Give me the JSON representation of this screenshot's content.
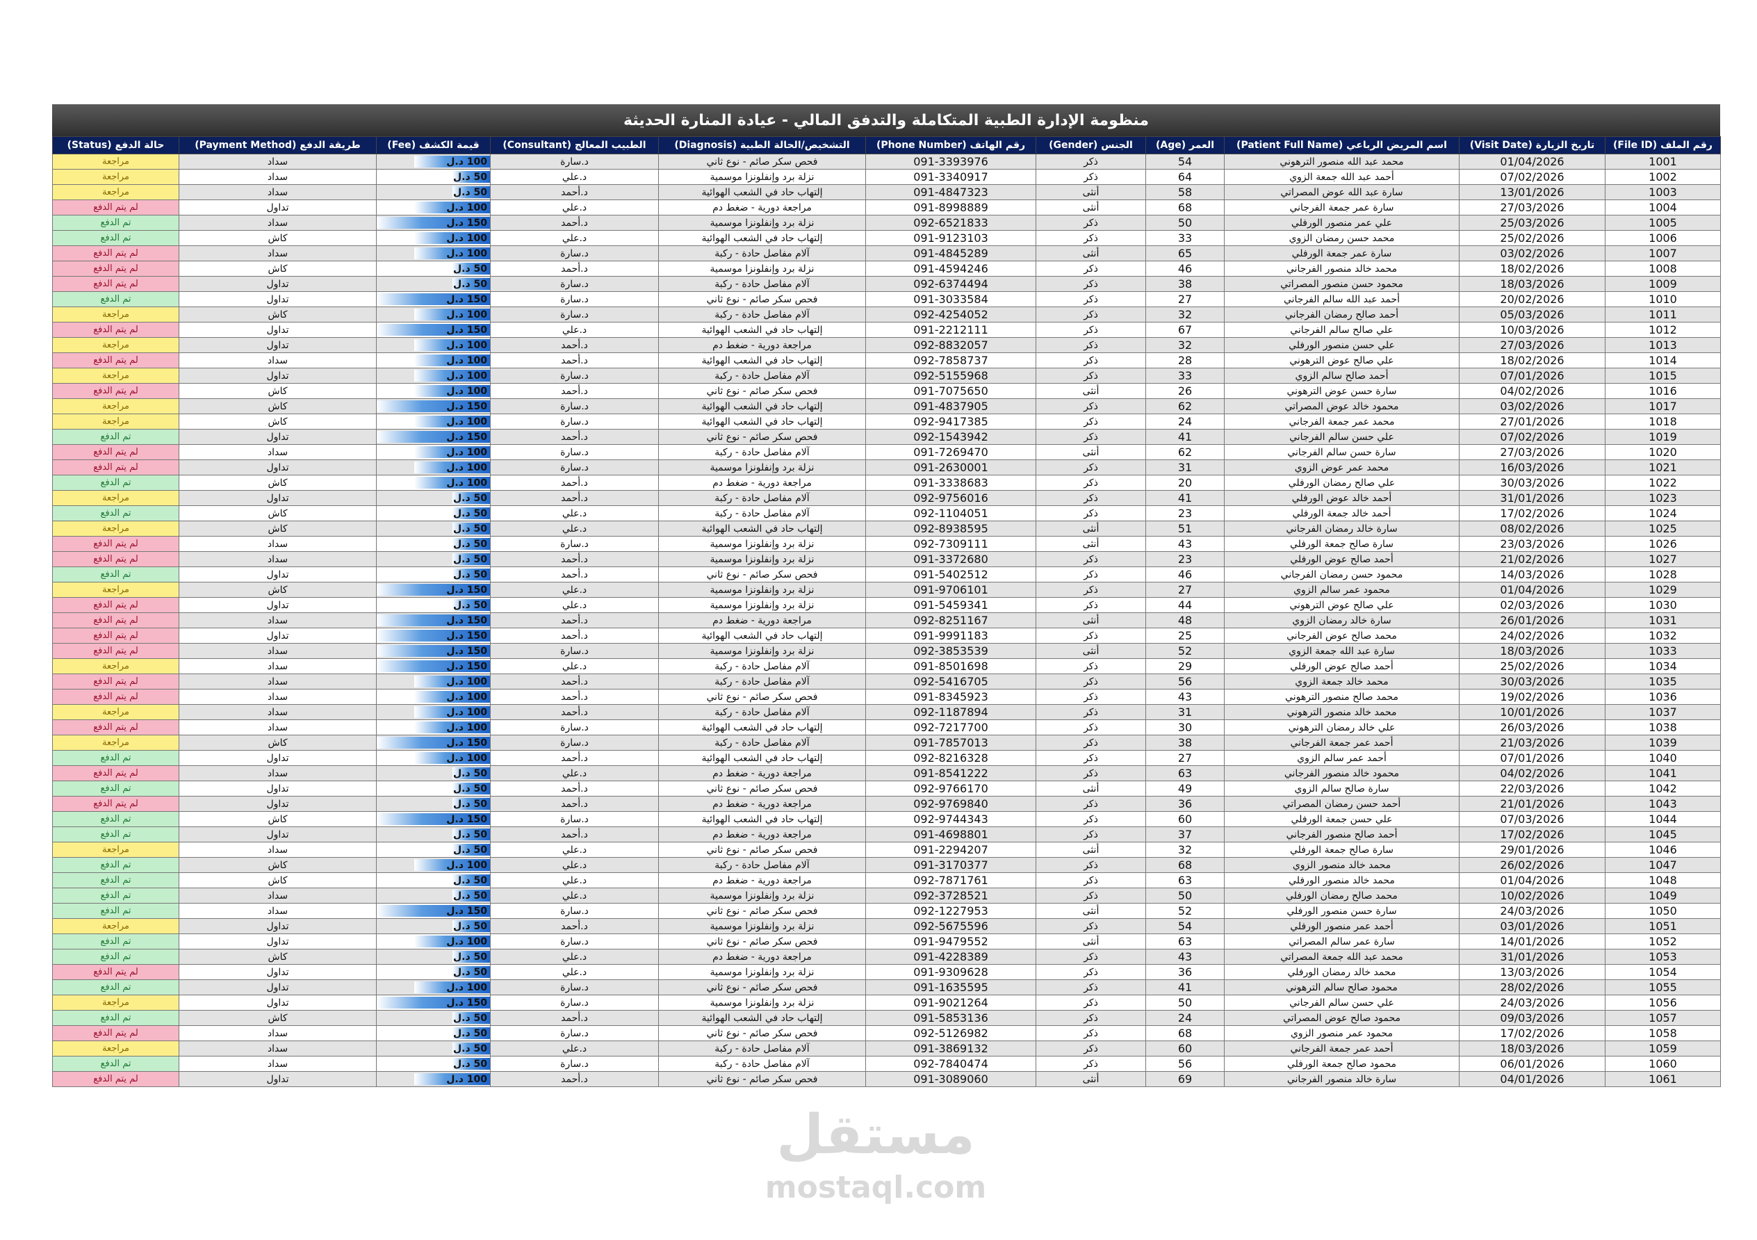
{
  "title": "منظومة الإدارة الطبية المتكاملة والتدفق المالي - عيادة المنارة الحديثة",
  "columns": [
    "رقم الملف (File ID)",
    "تاريخ الزيارة (Visit Date)",
    "اسم المريض الرباعي (Patient Full Name)",
    "العمر (Age)",
    "الجنس (Gender)",
    "رقم الهاتف (Phone Number)",
    "التشخيص/الحالة الطبية (Diagnosis)",
    "الطبيب المعالج (Consultant)",
    "قيمة الكشف (Fee)",
    "طريقة الدفع (Payment Method)",
    "حالة الدفع (Status)"
  ],
  "currency": "د.ل",
  "fee_max": 150,
  "status_colors": {
    "مراجعة": "#fcef8a",
    "لم يتم الدفع": "#f6b8c6",
    "تم الدفع": "#c3eecb"
  },
  "fee_bar_color": "#1d64c8",
  "header_color": "#0b1f5c",
  "diagnoses": {
    "A": "فحص سكر صائم - نوع ثاني",
    "B": "نزلة برد وإنفلونزا موسمية",
    "C": "إلتهاب حاد في الشعب الهوائية",
    "D": "مراجعة دورية - ضغط دم",
    "E": "آلام مفاصل حادة - ركبة"
  },
  "rows": [
    [
      "1001",
      "01/04/2026",
      "محمد عبد الله منصور الترهوني",
      "54",
      "ذكر",
      "091-3393976",
      "A",
      "د.سارة",
      "100",
      "سداد",
      "مراجعة"
    ],
    [
      "1002",
      "07/02/2026",
      "أحمد عبد الله جمعة الزوي",
      "64",
      "ذكر",
      "091-3340917",
      "B",
      "د.علي",
      "50",
      "سداد",
      "مراجعة"
    ],
    [
      "1003",
      "13/01/2026",
      "سارة عبد الله عوض المصراتي",
      "58",
      "أنثى",
      "091-4847323",
      "C",
      "د.أحمد",
      "50",
      "سداد",
      "مراجعة"
    ],
    [
      "1004",
      "27/03/2026",
      "سارة عمر جمعة الفرجاني",
      "68",
      "أنثى",
      "091-8998889",
      "D",
      "د.علي",
      "100",
      "تداول",
      "لم يتم الدفع"
    ],
    [
      "1005",
      "25/03/2026",
      "علي عمر منصور الورفلي",
      "50",
      "ذكر",
      "092-6521833",
      "B",
      "د.أحمد",
      "150",
      "سداد",
      "تم الدفع"
    ],
    [
      "1006",
      "25/02/2026",
      "محمد حسن رمضان الزوي",
      "33",
      "ذكر",
      "091-9123103",
      "C",
      "د.علي",
      "100",
      "كاش",
      "تم الدفع"
    ],
    [
      "1007",
      "03/02/2026",
      "سارة عمر جمعة الورفلي",
      "65",
      "أنثى",
      "091-4845289",
      "E",
      "د.سارة",
      "100",
      "سداد",
      "لم يتم الدفع"
    ],
    [
      "1008",
      "18/02/2026",
      "محمد خالد منصور الفرجاني",
      "46",
      "ذكر",
      "091-4594246",
      "B",
      "د.أحمد",
      "50",
      "كاش",
      "لم يتم الدفع"
    ],
    [
      "1009",
      "18/03/2026",
      "محمود حسن منصور المصراتي",
      "38",
      "ذكر",
      "092-6374494",
      "E",
      "د.سارة",
      "50",
      "تداول",
      "لم يتم الدفع"
    ],
    [
      "1010",
      "20/02/2026",
      "أحمد عبد الله سالم الفرجاني",
      "27",
      "ذكر",
      "091-3033584",
      "A",
      "د.سارة",
      "150",
      "تداول",
      "تم الدفع"
    ],
    [
      "1011",
      "05/03/2026",
      "أحمد صالح رمضان الفرجاني",
      "32",
      "ذكر",
      "092-4254052",
      "E",
      "د.سارة",
      "100",
      "كاش",
      "مراجعة"
    ],
    [
      "1012",
      "10/03/2026",
      "علي صالح سالم الفرجاني",
      "67",
      "ذكر",
      "091-2212111",
      "C",
      "د.علي",
      "150",
      "تداول",
      "لم يتم الدفع"
    ],
    [
      "1013",
      "27/03/2026",
      "علي حسن منصور الورفلي",
      "32",
      "ذكر",
      "092-8832057",
      "D",
      "د.أحمد",
      "100",
      "تداول",
      "مراجعة"
    ],
    [
      "1014",
      "18/02/2026",
      "علي صالح عوض الترهوني",
      "28",
      "ذكر",
      "092-7858737",
      "C",
      "د.أحمد",
      "100",
      "سداد",
      "لم يتم الدفع"
    ],
    [
      "1015",
      "07/01/2026",
      "أحمد صالح سالم الزوي",
      "33",
      "ذكر",
      "092-5155968",
      "E",
      "د.سارة",
      "100",
      "تداول",
      "مراجعة"
    ],
    [
      "1016",
      "04/02/2026",
      "سارة حسن عوض الترهوني",
      "26",
      "أنثى",
      "091-7075650",
      "A",
      "د.أحمد",
      "100",
      "كاش",
      "لم يتم الدفع"
    ],
    [
      "1017",
      "03/02/2026",
      "محمود خالد عوض المصراتي",
      "62",
      "ذكر",
      "091-4837905",
      "C",
      "د.سارة",
      "150",
      "كاش",
      "مراجعة"
    ],
    [
      "1018",
      "27/01/2026",
      "محمد عمر جمعة الفرجاني",
      "24",
      "ذكر",
      "092-9417385",
      "C",
      "د.سارة",
      "100",
      "كاش",
      "مراجعة"
    ],
    [
      "1019",
      "07/02/2026",
      "علي حسن سالم الفرجاني",
      "41",
      "ذكر",
      "092-1543942",
      "A",
      "د.أحمد",
      "150",
      "تداول",
      "تم الدفع"
    ],
    [
      "1020",
      "27/03/2026",
      "سارة حسن سالم الفرجاني",
      "62",
      "أنثى",
      "091-7269470",
      "E",
      "د.سارة",
      "100",
      "سداد",
      "لم يتم الدفع"
    ],
    [
      "1021",
      "16/03/2026",
      "محمد عمر عوض الزوي",
      "31",
      "ذكر",
      "091-2630001",
      "B",
      "د.سارة",
      "100",
      "تداول",
      "لم يتم الدفع"
    ],
    [
      "1022",
      "30/03/2026",
      "علي صالح رمضان الورفلي",
      "20",
      "ذكر",
      "091-3338683",
      "D",
      "د.أحمد",
      "100",
      "كاش",
      "تم الدفع"
    ],
    [
      "1023",
      "31/01/2026",
      "أحمد خالد عوض الورفلي",
      "41",
      "ذكر",
      "092-9756016",
      "E",
      "د.أحمد",
      "50",
      "تداول",
      "مراجعة"
    ],
    [
      "1024",
      "17/02/2026",
      "أحمد خالد جمعة الورفلي",
      "23",
      "ذكر",
      "092-1104051",
      "E",
      "د.علي",
      "50",
      "كاش",
      "تم الدفع"
    ],
    [
      "1025",
      "08/02/2026",
      "سارة خالد رمضان الفرجاني",
      "51",
      "أنثى",
      "092-8938595",
      "C",
      "د.علي",
      "50",
      "كاش",
      "مراجعة"
    ],
    [
      "1026",
      "23/03/2026",
      "سارة صالح جمعة الورفلي",
      "43",
      "أنثى",
      "092-7309111",
      "B",
      "د.سارة",
      "50",
      "سداد",
      "لم يتم الدفع"
    ],
    [
      "1027",
      "21/02/2026",
      "أحمد صالح عوض الورفلي",
      "23",
      "ذكر",
      "091-3372680",
      "B",
      "د.أحمد",
      "50",
      "سداد",
      "لم يتم الدفع"
    ],
    [
      "1028",
      "14/03/2026",
      "محمود حسن رمضان الفرجاني",
      "46",
      "ذكر",
      "091-5402512",
      "A",
      "د.أحمد",
      "50",
      "تداول",
      "تم الدفع"
    ],
    [
      "1029",
      "01/04/2026",
      "محمود عمر سالم الزوي",
      "27",
      "ذكر",
      "091-9706101",
      "B",
      "د.علي",
      "150",
      "كاش",
      "مراجعة"
    ],
    [
      "1030",
      "02/03/2026",
      "علي صالح عوض الترهوني",
      "44",
      "ذكر",
      "091-5459341",
      "B",
      "د.علي",
      "50",
      "تداول",
      "لم يتم الدفع"
    ],
    [
      "1031",
      "26/01/2026",
      "سارة خالد رمضان الزوي",
      "48",
      "أنثى",
      "092-8251167",
      "D",
      "د.أحمد",
      "150",
      "سداد",
      "لم يتم الدفع"
    ],
    [
      "1032",
      "24/02/2026",
      "محمد صالح عوض الفرجاني",
      "25",
      "ذكر",
      "091-9991183",
      "C",
      "د.أحمد",
      "150",
      "تداول",
      "لم يتم الدفع"
    ],
    [
      "1033",
      "18/03/2026",
      "سارة عبد الله جمعة الزوي",
      "52",
      "أنثى",
      "092-3853539",
      "B",
      "د.سارة",
      "150",
      "سداد",
      "لم يتم الدفع"
    ],
    [
      "1034",
      "25/02/2026",
      "أحمد صالح عوض الورفلي",
      "29",
      "ذكر",
      "091-8501698",
      "E",
      "د.علي",
      "150",
      "سداد",
      "مراجعة"
    ],
    [
      "1035",
      "30/03/2026",
      "محمد خالد جمعة الزوي",
      "56",
      "ذكر",
      "092-5416705",
      "E",
      "د.أحمد",
      "100",
      "سداد",
      "لم يتم الدفع"
    ],
    [
      "1036",
      "19/02/2026",
      "محمد صالح منصور الترهوني",
      "43",
      "ذكر",
      "091-8345923",
      "A",
      "د.أحمد",
      "100",
      "سداد",
      "لم يتم الدفع"
    ],
    [
      "1037",
      "10/01/2026",
      "محمد خالد منصور الترهوني",
      "31",
      "ذكر",
      "092-1187894",
      "E",
      "د.أحمد",
      "100",
      "سداد",
      "مراجعة"
    ],
    [
      "1038",
      "26/03/2026",
      "علي خالد رمضان الترهوني",
      "30",
      "ذكر",
      "092-7217700",
      "C",
      "د.سارة",
      "100",
      "سداد",
      "لم يتم الدفع"
    ],
    [
      "1039",
      "21/03/2026",
      "أحمد عمر جمعة الفرجاني",
      "38",
      "ذكر",
      "091-7857013",
      "E",
      "د.سارة",
      "150",
      "كاش",
      "مراجعة"
    ],
    [
      "1040",
      "07/01/2026",
      "أحمد عمر سالم الزوي",
      "27",
      "ذكر",
      "092-8216328",
      "C",
      "د.أحمد",
      "100",
      "تداول",
      "تم الدفع"
    ],
    [
      "1041",
      "04/02/2026",
      "محمود خالد منصور الفرجاني",
      "63",
      "ذكر",
      "091-8541222",
      "D",
      "د.علي",
      "50",
      "سداد",
      "لم يتم الدفع"
    ],
    [
      "1042",
      "22/03/2026",
      "سارة صالح سالم الزوي",
      "49",
      "أنثى",
      "092-9766170",
      "A",
      "د.أحمد",
      "50",
      "تداول",
      "تم الدفع"
    ],
    [
      "1043",
      "21/01/2026",
      "أحمد حسن رمضان المصراتي",
      "36",
      "ذكر",
      "092-9769840",
      "D",
      "د.أحمد",
      "50",
      "تداول",
      "لم يتم الدفع"
    ],
    [
      "1044",
      "07/03/2026",
      "علي حسن جمعة الورفلي",
      "60",
      "ذكر",
      "092-9744343",
      "C",
      "د.سارة",
      "150",
      "كاش",
      "تم الدفع"
    ],
    [
      "1045",
      "17/02/2026",
      "أحمد صالح منصور الفرجاني",
      "37",
      "ذكر",
      "091-4698801",
      "D",
      "د.أحمد",
      "50",
      "تداول",
      "تم الدفع"
    ],
    [
      "1046",
      "29/01/2026",
      "سارة صالح جمعة الورفلي",
      "32",
      "أنثى",
      "091-2294207",
      "A",
      "د.علي",
      "50",
      "سداد",
      "مراجعة"
    ],
    [
      "1047",
      "26/02/2026",
      "محمد خالد منصور الزوي",
      "68",
      "ذكر",
      "091-3170377",
      "E",
      "د.علي",
      "100",
      "كاش",
      "تم الدفع"
    ],
    [
      "1048",
      "01/04/2026",
      "محمد خالد منصور الورفلي",
      "63",
      "ذكر",
      "092-7871761",
      "D",
      "د.علي",
      "50",
      "كاش",
      "تم الدفع"
    ],
    [
      "1049",
      "10/02/2026",
      "محمد صالح رمضان الورفلي",
      "50",
      "ذكر",
      "092-3728521",
      "B",
      "د.علي",
      "50",
      "سداد",
      "تم الدفع"
    ],
    [
      "1050",
      "24/03/2026",
      "سارة حسن منصور الورفلي",
      "52",
      "أنثى",
      "092-1227953",
      "A",
      "د.سارة",
      "150",
      "سداد",
      "تم الدفع"
    ],
    [
      "1051",
      "03/01/2026",
      "أحمد عمر منصور الورفلي",
      "54",
      "ذكر",
      "092-5675596",
      "B",
      "د.أحمد",
      "50",
      "تداول",
      "مراجعة"
    ],
    [
      "1052",
      "14/01/2026",
      "سارة عمر سالم المصراتي",
      "63",
      "أنثى",
      "091-9479552",
      "A",
      "د.سارة",
      "100",
      "تداول",
      "تم الدفع"
    ],
    [
      "1053",
      "31/01/2026",
      "محمد عبد الله جمعة المصراتي",
      "43",
      "ذكر",
      "091-4228389",
      "D",
      "د.علي",
      "50",
      "كاش",
      "تم الدفع"
    ],
    [
      "1054",
      "13/03/2026",
      "محمد خالد رمضان الورفلي",
      "36",
      "ذكر",
      "091-9309628",
      "B",
      "د.علي",
      "50",
      "تداول",
      "لم يتم الدفع"
    ],
    [
      "1055",
      "28/02/2026",
      "محمود صالح سالم الترهوني",
      "41",
      "ذكر",
      "091-1635595",
      "A",
      "د.سارة",
      "100",
      "تداول",
      "تم الدفع"
    ],
    [
      "1056",
      "24/03/2026",
      "علي حسن سالم الفرجاني",
      "50",
      "ذكر",
      "091-9021264",
      "B",
      "د.سارة",
      "150",
      "تداول",
      "مراجعة"
    ],
    [
      "1057",
      "09/03/2026",
      "محمود صالح عوض المصراتي",
      "24",
      "ذكر",
      "091-5853136",
      "C",
      "د.أحمد",
      "50",
      "كاش",
      "تم الدفع"
    ],
    [
      "1058",
      "17/02/2026",
      "محمود عمر منصور الزوي",
      "68",
      "ذكر",
      "092-5126982",
      "A",
      "د.سارة",
      "50",
      "سداد",
      "لم يتم الدفع"
    ],
    [
      "1059",
      "18/03/2026",
      "أحمد عمر جمعة الفرجاني",
      "60",
      "ذكر",
      "091-3869132",
      "E",
      "د.علي",
      "50",
      "سداد",
      "مراجعة"
    ],
    [
      "1060",
      "06/01/2026",
      "محمود صالح جمعة الورفلي",
      "56",
      "ذكر",
      "092-7840474",
      "E",
      "د.سارة",
      "50",
      "سداد",
      "تم الدفع"
    ],
    [
      "1061",
      "04/01/2026",
      "سارة خالد منصور الفرجاني",
      "69",
      "أنثى",
      "091-3089060",
      "A",
      "د.أحمد",
      "100",
      "تداول",
      "لم يتم الدفع"
    ]
  ],
  "watermark": {
    "arabic": "مستقل",
    "latin": "mostaql.com"
  }
}
